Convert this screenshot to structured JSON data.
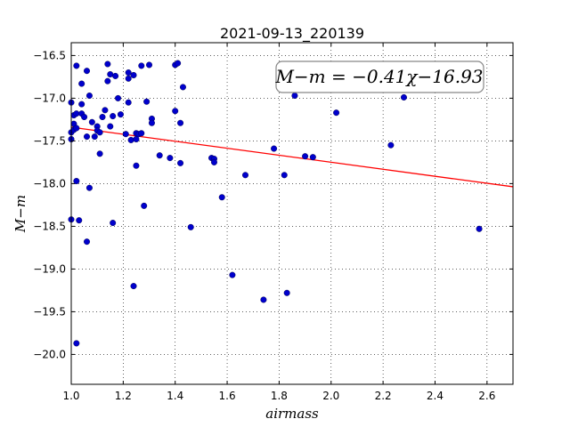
{
  "chart_data": {
    "type": "scatter",
    "title": "2021-09-13_220139",
    "xlabel": "airmass",
    "ylabel": "M−m",
    "xlim": [
      1.0,
      2.7
    ],
    "ylim": [
      -20.35,
      -16.35
    ],
    "xticks": [
      1.0,
      1.2,
      1.4,
      1.6,
      1.8,
      2.0,
      2.2,
      2.4,
      2.6
    ],
    "xtick_labels": [
      "1.0",
      "1.2",
      "1.4",
      "1.6",
      "1.8",
      "2.0",
      "2.2",
      "2.4",
      "2.6"
    ],
    "yticks": [
      -16.5,
      -17.0,
      -17.5,
      -18.0,
      -18.5,
      -19.0,
      -19.5,
      -20.0
    ],
    "ytick_labels": [
      "−16.5",
      "−17.0",
      "−17.5",
      "−18.0",
      "−18.5",
      "−19.0",
      "−19.5",
      "−20.0"
    ],
    "grid": true,
    "annotation": "M−m = −0.41χ−16.93",
    "fit_line": {
      "slope": -0.41,
      "intercept": -16.93,
      "color": "#ff0000"
    },
    "marker_color": "#0000cc",
    "points": [
      [
        1.0,
        -17.05
      ],
      [
        1.0,
        -17.4
      ],
      [
        1.0,
        -17.48
      ],
      [
        1.0,
        -18.42
      ],
      [
        1.01,
        -17.2
      ],
      [
        1.01,
        -17.3
      ],
      [
        1.01,
        -17.37
      ],
      [
        1.02,
        -17.18
      ],
      [
        1.02,
        -17.35
      ],
      [
        1.02,
        -16.62
      ],
      [
        1.02,
        -17.97
      ],
      [
        1.02,
        -19.87
      ],
      [
        1.03,
        -18.43
      ],
      [
        1.04,
        -17.18
      ],
      [
        1.04,
        -16.83
      ],
      [
        1.04,
        -17.07
      ],
      [
        1.05,
        -17.22
      ],
      [
        1.06,
        -16.68
      ],
      [
        1.06,
        -17.45
      ],
      [
        1.06,
        -18.68
      ],
      [
        1.07,
        -16.97
      ],
      [
        1.07,
        -18.05
      ],
      [
        1.08,
        -17.28
      ],
      [
        1.09,
        -17.45
      ],
      [
        1.1,
        -17.33
      ],
      [
        1.1,
        -17.38
      ],
      [
        1.11,
        -17.65
      ],
      [
        1.11,
        -17.4
      ],
      [
        1.12,
        -17.22
      ],
      [
        1.13,
        -17.14
      ],
      [
        1.14,
        -16.6
      ],
      [
        1.14,
        -16.8
      ],
      [
        1.15,
        -17.33
      ],
      [
        1.15,
        -16.72
      ],
      [
        1.16,
        -18.46
      ],
      [
        1.16,
        -17.21
      ],
      [
        1.17,
        -16.74
      ],
      [
        1.18,
        -17.0
      ],
      [
        1.19,
        -17.19
      ],
      [
        1.21,
        -17.42
      ],
      [
        1.22,
        -17.05
      ],
      [
        1.22,
        -16.7
      ],
      [
        1.22,
        -16.77
      ],
      [
        1.23,
        -17.49
      ],
      [
        1.24,
        -16.73
      ],
      [
        1.24,
        -19.2
      ],
      [
        1.25,
        -17.41
      ],
      [
        1.25,
        -17.79
      ],
      [
        1.25,
        -17.48
      ],
      [
        1.26,
        -17.42
      ],
      [
        1.27,
        -17.41
      ],
      [
        1.27,
        -16.62
      ],
      [
        1.28,
        -18.26
      ],
      [
        1.29,
        -17.04
      ],
      [
        1.3,
        -16.61
      ],
      [
        1.31,
        -17.24
      ],
      [
        1.31,
        -17.29
      ],
      [
        1.34,
        -17.67
      ],
      [
        1.38,
        -17.7
      ],
      [
        1.4,
        -16.61
      ],
      [
        1.4,
        -17.15
      ],
      [
        1.41,
        -16.59
      ],
      [
        1.42,
        -17.29
      ],
      [
        1.42,
        -17.76
      ],
      [
        1.43,
        -16.87
      ],
      [
        1.46,
        -18.51
      ],
      [
        1.54,
        -17.7
      ],
      [
        1.55,
        -17.71
      ],
      [
        1.55,
        -17.75
      ],
      [
        1.58,
        -18.16
      ],
      [
        1.62,
        -19.07
      ],
      [
        1.67,
        -17.9
      ],
      [
        1.74,
        -19.36
      ],
      [
        1.78,
        -17.59
      ],
      [
        1.82,
        -17.9
      ],
      [
        1.83,
        -19.28
      ],
      [
        1.86,
        -16.97
      ],
      [
        1.9,
        -17.68
      ],
      [
        1.93,
        -17.69
      ],
      [
        2.02,
        -17.17
      ],
      [
        2.23,
        -17.55
      ],
      [
        2.28,
        -16.99
      ],
      [
        2.57,
        -18.53
      ]
    ]
  }
}
